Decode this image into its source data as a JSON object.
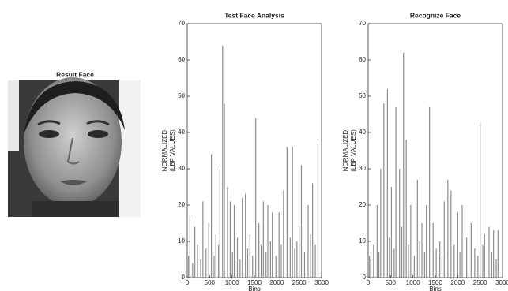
{
  "result_face": {
    "title": "Result Face"
  },
  "chart_data": [
    {
      "type": "bar",
      "title": "Test Face Analysis",
      "ylabel": [
        "NORMALIZED",
        "(LBP VALUES)"
      ],
      "xlabel": "Bins",
      "color": "#8c8c8c",
      "x": [
        30,
        60,
        120,
        170,
        230,
        300,
        350,
        420,
        480,
        540,
        600,
        640,
        700,
        730,
        790,
        830,
        900,
        960,
        1010,
        1050,
        1120,
        1180,
        1230,
        1300,
        1350,
        1400,
        1460,
        1530,
        1600,
        1650,
        1700,
        1760,
        1800,
        1860,
        1900,
        1980,
        2050,
        2100,
        2150,
        2230,
        2300,
        2350,
        2400,
        2450,
        2500,
        2550,
        2620,
        2700,
        2750,
        2800,
        2860,
        2920
      ],
      "values": [
        6,
        17,
        4,
        14,
        9,
        5,
        21,
        8,
        15,
        34,
        6,
        12,
        9,
        30,
        64,
        48,
        25,
        21,
        7,
        20,
        11,
        5,
        22,
        23,
        8,
        12,
        6,
        44,
        15,
        9,
        21,
        7,
        20,
        10,
        18,
        6,
        18,
        9,
        24,
        36,
        11,
        36,
        8,
        10,
        14,
        31,
        7,
        20,
        12,
        26,
        9,
        37
      ],
      "xlim": [
        0,
        3000
      ],
      "xticks": [
        0,
        500,
        1000,
        1500,
        2000,
        2500,
        3000
      ],
      "ylim": [
        0,
        70
      ],
      "yticks": [
        0,
        10,
        20,
        30,
        40,
        50,
        60,
        70
      ]
    },
    {
      "type": "bar",
      "title": "Recognize Face",
      "ylabel": [
        "NORMALIZED",
        "(LBP VALUES)"
      ],
      "xlabel": "Bins",
      "color": "#8c8c8c",
      "x": [
        30,
        60,
        120,
        200,
        240,
        280,
        350,
        430,
        480,
        520,
        580,
        620,
        700,
        750,
        790,
        850,
        900,
        950,
        1030,
        1100,
        1150,
        1200,
        1260,
        1300,
        1370,
        1450,
        1520,
        1600,
        1650,
        1700,
        1780,
        1850,
        1920,
        2000,
        2050,
        2100,
        2200,
        2300,
        2380,
        2450,
        2500,
        2560,
        2600,
        2700,
        2760,
        2800,
        2860,
        2900
      ],
      "values": [
        6,
        5,
        9,
        20,
        7,
        30,
        48,
        52,
        11,
        25,
        8,
        47,
        30,
        14,
        62,
        38,
        9,
        20,
        6,
        27,
        10,
        15,
        7,
        20,
        47,
        15,
        8,
        10,
        6,
        21,
        27,
        24,
        9,
        18,
        7,
        20,
        11,
        15,
        8,
        6,
        43,
        9,
        12,
        14,
        7,
        13,
        5,
        13
      ],
      "xlim": [
        0,
        3000
      ],
      "xticks": [
        0,
        500,
        1000,
        1500,
        2000,
        2500,
        3000
      ],
      "ylim": [
        0,
        70
      ],
      "yticks": [
        0,
        10,
        20,
        30,
        40,
        50,
        60,
        70
      ]
    }
  ]
}
